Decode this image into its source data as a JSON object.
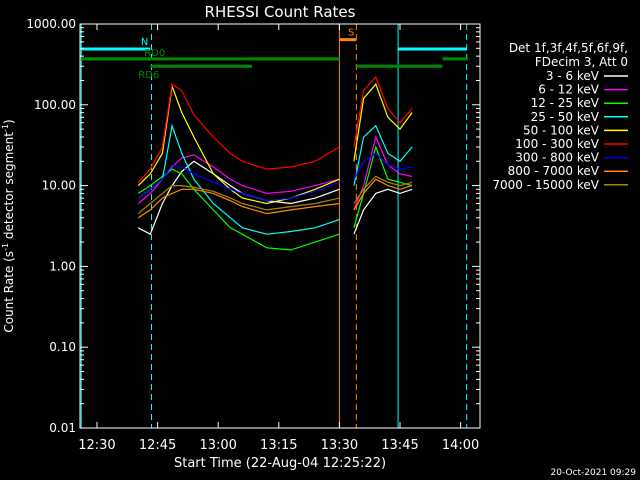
{
  "chart_data": {
    "type": "line",
    "title": "RHESSI Count Rates",
    "xlabel": "Start Time (22-Aug-04 12:25:22)",
    "ylabel_main": "Count Rate (s",
    "ylabel_sup": "-1",
    "ylabel_tail": " detector segment",
    "ylabel_sup2": "-1",
    "ylabel_close": ")",
    "yscale": "log",
    "ylim": [
      0.01,
      1000
    ],
    "xlim": [
      12.43,
      14.08
    ],
    "xticks": [
      {
        "value": 12.5,
        "label": "12:30"
      },
      {
        "value": 12.75,
        "label": "12:45"
      },
      {
        "value": 13.0,
        "label": "13:00"
      },
      {
        "value": 13.25,
        "label": "13:15"
      },
      {
        "value": 13.5,
        "label": "13:30"
      },
      {
        "value": 13.75,
        "label": "13:45"
      },
      {
        "value": 14.0,
        "label": "14:00"
      }
    ],
    "yticks": [
      {
        "value": 0.01,
        "label": "0.01"
      },
      {
        "value": 0.1,
        "label": "0.10"
      },
      {
        "value": 1,
        "label": "1.00"
      },
      {
        "value": 10,
        "label": "10.00"
      },
      {
        "value": 100,
        "label": "100.00"
      },
      {
        "value": 1000,
        "label": "1000.00"
      }
    ],
    "legend_position": "right",
    "legend_header": [
      "Det 1f,3f,4f,5f,6f,9f,",
      "FDecim 3, Att 0"
    ],
    "series": [
      {
        "name": "3 - 6 keV",
        "color": "#ffffff",
        "segments": [
          [
            [
              12.67,
              3.0
            ],
            [
              12.72,
              2.5
            ],
            [
              12.77,
              6.0
            ],
            [
              12.81,
              10.0
            ],
            [
              12.85,
              15.0
            ],
            [
              12.9,
              20.0
            ],
            [
              12.98,
              14.0
            ],
            [
              13.05,
              10.0
            ],
            [
              13.1,
              8.0
            ],
            [
              13.2,
              6.5
            ],
            [
              13.3,
              6.0
            ],
            [
              13.4,
              7.0
            ],
            [
              13.5,
              9.0
            ]
          ],
          [
            [
              13.56,
              2.5
            ],
            [
              13.6,
              5.0
            ],
            [
              13.65,
              8.0
            ],
            [
              13.7,
              9.0
            ],
            [
              13.75,
              8.0
            ],
            [
              13.8,
              9.0
            ]
          ]
        ]
      },
      {
        "name": "6 - 12 keV",
        "color": "#ff00ff",
        "segments": [
          [
            [
              12.67,
              6.0
            ],
            [
              12.72,
              8.0
            ],
            [
              12.77,
              12.0
            ],
            [
              12.81,
              17.0
            ],
            [
              12.85,
              22.0
            ],
            [
              12.9,
              24.0
            ],
            [
              12.98,
              17.0
            ],
            [
              13.05,
              12.0
            ],
            [
              13.1,
              10.0
            ],
            [
              13.2,
              8.0
            ],
            [
              13.3,
              8.5
            ],
            [
              13.4,
              10.0
            ],
            [
              13.5,
              12.0
            ]
          ],
          [
            [
              13.56,
              5.0
            ],
            [
              13.6,
              10.0
            ],
            [
              13.65,
              40.0
            ],
            [
              13.7,
              18.0
            ],
            [
              13.75,
              14.0
            ],
            [
              13.8,
              13.0
            ]
          ]
        ]
      },
      {
        "name": "12 - 25 keV",
        "color": "#00ff00",
        "segments": [
          [
            [
              12.67,
              8.0
            ],
            [
              12.72,
              10.0
            ],
            [
              12.77,
              13.0
            ],
            [
              12.81,
              16.0
            ],
            [
              12.85,
              14.0
            ],
            [
              12.9,
              9.0
            ],
            [
              12.98,
              5.0
            ],
            [
              13.05,
              3.0
            ],
            [
              13.1,
              2.5
            ],
            [
              13.2,
              1.7
            ],
            [
              13.3,
              1.6
            ],
            [
              13.4,
              2.0
            ],
            [
              13.5,
              2.5
            ]
          ],
          [
            [
              13.56,
              3.0
            ],
            [
              13.6,
              8.0
            ],
            [
              13.65,
              30.0
            ],
            [
              13.7,
              12.0
            ],
            [
              13.75,
              11.0
            ],
            [
              13.8,
              10.0
            ]
          ]
        ]
      },
      {
        "name": "25 - 50 keV",
        "color": "#00ffff",
        "segments": [
          [
            [
              12.67,
              7.0
            ],
            [
              12.72,
              9.0
            ],
            [
              12.77,
              12.0
            ],
            [
              12.81,
              55.0
            ],
            [
              12.85,
              25.0
            ],
            [
              12.9,
              12.0
            ],
            [
              12.98,
              6.0
            ],
            [
              13.05,
              4.0
            ],
            [
              13.1,
              3.0
            ],
            [
              13.2,
              2.5
            ],
            [
              13.3,
              2.7
            ],
            [
              13.4,
              3.0
            ],
            [
              13.5,
              3.8
            ]
          ],
          [
            [
              13.56,
              10.0
            ],
            [
              13.6,
              40.0
            ],
            [
              13.65,
              55.0
            ],
            [
              13.7,
              25.0
            ],
            [
              13.75,
              20.0
            ],
            [
              13.8,
              30.0
            ]
          ]
        ]
      },
      {
        "name": "50 - 100 keV",
        "color": "#ffff00",
        "segments": [
          [
            [
              12.67,
              10.0
            ],
            [
              12.72,
              14.0
            ],
            [
              12.77,
              25.0
            ],
            [
              12.81,
              170.0
            ],
            [
              12.85,
              80.0
            ],
            [
              12.9,
              40.0
            ],
            [
              12.98,
              14.0
            ],
            [
              13.05,
              9.0
            ],
            [
              13.1,
              7.0
            ],
            [
              13.2,
              6.0
            ],
            [
              13.3,
              7.0
            ],
            [
              13.4,
              9.0
            ],
            [
              13.5,
              12.0
            ]
          ],
          [
            [
              13.56,
              20.0
            ],
            [
              13.6,
              120.0
            ],
            [
              13.65,
              180.0
            ],
            [
              13.7,
              70.0
            ],
            [
              13.75,
              50.0
            ],
            [
              13.8,
              80.0
            ]
          ]
        ]
      },
      {
        "name": "100 - 300 keV",
        "color": "#ff0000",
        "segments": [
          [
            [
              12.67,
              11.0
            ],
            [
              12.72,
              16.0
            ],
            [
              12.77,
              30.0
            ],
            [
              12.81,
              180.0
            ],
            [
              12.85,
              150.0
            ],
            [
              12.9,
              75.0
            ],
            [
              12.98,
              40.0
            ],
            [
              13.05,
              25.0
            ],
            [
              13.1,
              20.0
            ],
            [
              13.2,
              16.0
            ],
            [
              13.3,
              17.0
            ],
            [
              13.4,
              20.0
            ],
            [
              13.5,
              30.0
            ]
          ],
          [
            [
              13.56,
              30.0
            ],
            [
              13.6,
              150.0
            ],
            [
              13.65,
              220.0
            ],
            [
              13.7,
              90.0
            ],
            [
              13.75,
              60.0
            ],
            [
              13.8,
              90.0
            ]
          ]
        ]
      },
      {
        "name": "300 - 800 keV",
        "color": "#0000ff",
        "segments": [
          [
            [
              12.67,
              7.0
            ],
            [
              12.72,
              9.0
            ],
            [
              12.77,
              12.0
            ],
            [
              12.81,
              18.0
            ],
            [
              12.85,
              17.0
            ],
            [
              12.9,
              14.0
            ],
            [
              12.98,
              11.0
            ],
            [
              13.05,
              9.0
            ],
            [
              13.1,
              8.0
            ],
            [
              13.2,
              6.5
            ],
            [
              13.3,
              7.0
            ],
            [
              13.4,
              8.5
            ],
            [
              13.5,
              11.0
            ]
          ],
          [
            [
              13.56,
              12.0
            ],
            [
              13.6,
              20.0
            ],
            [
              13.65,
              25.0
            ],
            [
              13.7,
              18.0
            ],
            [
              13.75,
              16.0
            ],
            [
              13.8,
              17.0
            ]
          ]
        ]
      },
      {
        "name": "800 - 7000 keV",
        "color": "#ff8800",
        "segments": [
          [
            [
              12.67,
              4.0
            ],
            [
              12.72,
              5.0
            ],
            [
              12.77,
              7.0
            ],
            [
              12.81,
              8.0
            ],
            [
              12.85,
              9.0
            ],
            [
              12.9,
              9.0
            ],
            [
              12.98,
              8.0
            ],
            [
              13.05,
              6.5
            ],
            [
              13.1,
              5.5
            ],
            [
              13.2,
              4.5
            ],
            [
              13.3,
              5.0
            ],
            [
              13.4,
              5.5
            ],
            [
              13.5,
              6.0
            ]
          ],
          [
            [
              13.56,
              5.0
            ],
            [
              13.6,
              8.0
            ],
            [
              13.65,
              12.0
            ],
            [
              13.7,
              10.0
            ],
            [
              13.75,
              9.0
            ],
            [
              13.8,
              10.0
            ]
          ]
        ]
      },
      {
        "name": "7000 - 15000 keV",
        "color": "#aa8800",
        "segments": [
          [
            [
              12.67,
              4.5
            ],
            [
              12.72,
              6.0
            ],
            [
              12.77,
              8.0
            ],
            [
              12.81,
              10.0
            ],
            [
              12.85,
              10.0
            ],
            [
              12.9,
              9.5
            ],
            [
              12.98,
              8.5
            ],
            [
              13.05,
              7.0
            ],
            [
              13.1,
              6.0
            ],
            [
              13.2,
              5.0
            ],
            [
              13.3,
              5.5
            ],
            [
              13.4,
              6.0
            ],
            [
              13.5,
              7.0
            ]
          ],
          [
            [
              13.56,
              6.0
            ],
            [
              13.6,
              9.0
            ],
            [
              13.65,
              13.0
            ],
            [
              13.7,
              11.0
            ],
            [
              13.75,
              10.0
            ],
            [
              13.8,
              11.0
            ]
          ]
        ]
      }
    ],
    "vlines": [
      {
        "x": 12.435,
        "color": "#00ffff",
        "style": "solid"
      },
      {
        "x": 12.725,
        "color": "#00ffff",
        "style": "dash"
      },
      {
        "x": 13.5,
        "color": "#ff8800",
        "style": "solid"
      },
      {
        "x": 13.57,
        "color": "#ff8800",
        "style": "dash"
      },
      {
        "x": 13.742,
        "color": "#00ffff",
        "style": "solid"
      },
      {
        "x": 14.025,
        "color": "#00ffff",
        "style": "dash"
      }
    ],
    "attenuator_bars": [
      {
        "x0": 12.435,
        "x1": 12.72,
        "y": 490,
        "color": "#00ffff",
        "label": "N"
      },
      {
        "x0": 13.742,
        "x1": 14.025,
        "y": 490,
        "color": "#00ffff",
        "label": ""
      },
      {
        "x0": 13.5,
        "x1": 13.57,
        "y": 640,
        "color": "#ff8800",
        "label": "S"
      }
    ],
    "rate_bars": [
      {
        "x0": 12.435,
        "x1": 13.5,
        "y": 370,
        "color": "#008800",
        "label": "RD0"
      },
      {
        "x0": 12.435,
        "x1": 12.72,
        "y": 370,
        "color": "#008800",
        "label": ""
      },
      {
        "x0": 12.72,
        "x1": 13.14,
        "y": 300,
        "color": "#008800",
        "label": "RD6"
      },
      {
        "x0": 13.14,
        "x1": 13.5,
        "y": 370,
        "color": "#008800",
        "label": ""
      },
      {
        "x0": 13.57,
        "x1": 13.925,
        "y": 300,
        "color": "#008800",
        "label": ""
      },
      {
        "x0": 13.925,
        "x1": 14.03,
        "y": 370,
        "color": "#008800",
        "label": ""
      }
    ],
    "timestamp": "20-Oct-2021 09:29"
  }
}
